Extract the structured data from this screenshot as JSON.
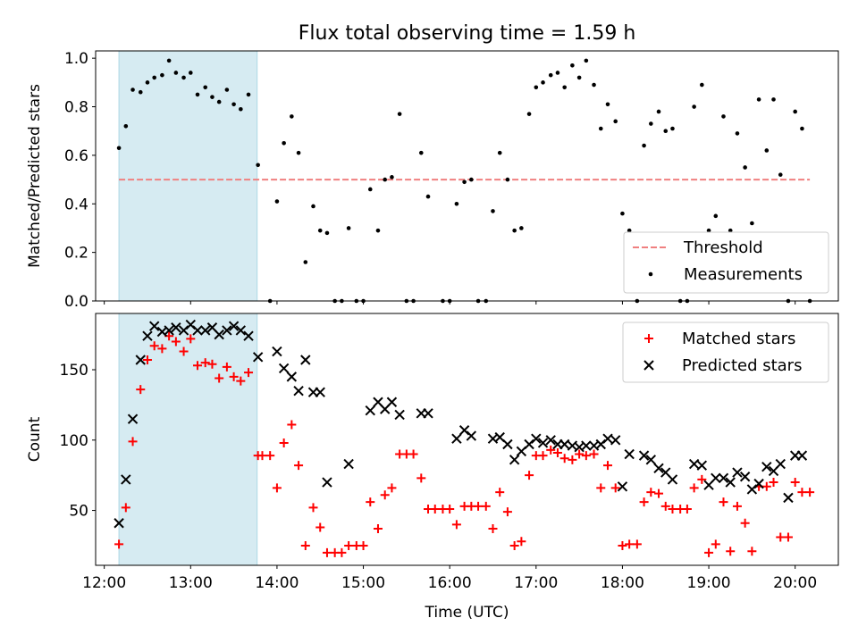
{
  "chart_data": [
    {
      "type": "scatter",
      "title": "Flux total observing time = 1.59 h",
      "ylabel": "Matched/Predicted stars",
      "xlabel": "",
      "xlim": [
        11.9,
        20.5
      ],
      "ylim": [
        0,
        1.03
      ],
      "yticks": [
        "0.0",
        "0.2",
        "0.4",
        "0.6",
        "0.8",
        "1.0"
      ],
      "shaded_interval": [
        12.17,
        13.77
      ],
      "shade_color": "#add8e6",
      "threshold": {
        "label": "Threshold",
        "value": 0.5,
        "x_range": [
          12.17,
          20.17
        ],
        "color": "#f08080"
      },
      "legend": {
        "placement": "lower-right",
        "entries": [
          "Threshold",
          "Measurements"
        ]
      },
      "series": [
        {
          "name": "Measurements",
          "color": "#000000",
          "x": [
            12.17,
            12.25,
            12.33,
            12.42,
            12.5,
            12.58,
            12.67,
            12.75,
            12.83,
            12.92,
            13.0,
            13.08,
            13.17,
            13.25,
            13.33,
            13.42,
            13.5,
            13.58,
            13.67,
            13.78,
            13.92,
            14.0,
            14.08,
            14.17,
            14.25,
            14.33,
            14.42,
            14.5,
            14.58,
            14.67,
            14.75,
            14.83,
            14.92,
            15.0,
            15.08,
            15.17,
            15.25,
            15.33,
            15.42,
            15.5,
            15.58,
            15.67,
            15.75,
            15.92,
            16.0,
            16.08,
            16.17,
            16.25,
            16.33,
            16.42,
            16.5,
            16.58,
            16.67,
            16.75,
            16.83,
            16.92,
            17.0,
            17.08,
            17.17,
            17.25,
            17.33,
            17.42,
            17.5,
            17.58,
            17.67,
            17.75,
            17.83,
            17.92,
            18.0,
            18.08,
            18.17,
            18.25,
            18.33,
            18.42,
            18.5,
            18.58,
            18.67,
            18.75,
            18.83,
            18.92,
            19.0,
            19.08,
            19.17,
            19.25,
            19.33,
            19.42,
            19.5,
            19.58,
            19.67,
            19.75,
            19.83,
            19.92,
            20.0,
            20.08,
            20.17
          ],
          "y": [
            0.63,
            0.72,
            0.87,
            0.86,
            0.9,
            0.92,
            0.93,
            0.99,
            0.94,
            0.92,
            0.94,
            0.85,
            0.88,
            0.84,
            0.82,
            0.87,
            0.81,
            0.79,
            0.85,
            0.56,
            0.0,
            0.41,
            0.65,
            0.76,
            0.61,
            0.16,
            0.39,
            0.29,
            0.28,
            0.0,
            0.0,
            0.3,
            0.0,
            0.0,
            0.46,
            0.29,
            0.5,
            0.51,
            0.77,
            0.0,
            0.0,
            0.61,
            0.43,
            0.0,
            0.0,
            0.4,
            0.49,
            0.5,
            0.0,
            0.0,
            0.37,
            0.61,
            0.5,
            0.29,
            0.3,
            0.77,
            0.88,
            0.9,
            0.93,
            0.94,
            0.88,
            0.97,
            0.92,
            0.99,
            0.89,
            0.71,
            0.81,
            0.74,
            0.36,
            0.29,
            0.0,
            0.64,
            0.73,
            0.78,
            0.7,
            0.71,
            0.0,
            0.0,
            0.8,
            0.89,
            0.29,
            0.35,
            0.76,
            0.29,
            0.69,
            0.55,
            0.32,
            0.83,
            0.62,
            0.83,
            0.52,
            0.0,
            0.78,
            0.71,
            0.0
          ]
        }
      ]
    },
    {
      "type": "scatter",
      "title": "",
      "xlabel": "Time (UTC)",
      "ylabel": "Count",
      "xlim": [
        11.9,
        20.5
      ],
      "ylim": [
        11,
        190
      ],
      "xticks": [
        {
          "value": 12,
          "label": "12:00"
        },
        {
          "value": 13,
          "label": "13:00"
        },
        {
          "value": 14,
          "label": "14:00"
        },
        {
          "value": 15,
          "label": "15:00"
        },
        {
          "value": 16,
          "label": "16:00"
        },
        {
          "value": 17,
          "label": "17:00"
        },
        {
          "value": 18,
          "label": "18:00"
        },
        {
          "value": 19,
          "label": "19:00"
        },
        {
          "value": 20,
          "label": "20:00"
        }
      ],
      "yticks": [
        "50",
        "100",
        "150"
      ],
      "shaded_interval": [
        12.17,
        13.77
      ],
      "shade_color": "#add8e6",
      "legend": {
        "placement": "upper-right",
        "entries": [
          "Matched stars",
          "Predicted stars"
        ]
      },
      "series": [
        {
          "name": "Matched stars",
          "marker": "plus",
          "color": "#ff0000",
          "x": [
            12.17,
            12.25,
            12.33,
            12.42,
            12.5,
            12.58,
            12.67,
            12.75,
            12.83,
            12.92,
            13.0,
            13.08,
            13.17,
            13.25,
            13.33,
            13.42,
            13.5,
            13.58,
            13.67,
            13.78,
            13.83,
            13.92,
            14.0,
            14.08,
            14.17,
            14.25,
            14.33,
            14.42,
            14.5,
            14.58,
            14.67,
            14.75,
            14.83,
            14.92,
            15.0,
            15.08,
            15.17,
            15.25,
            15.33,
            15.42,
            15.5,
            15.58,
            15.67,
            15.75,
            15.83,
            15.92,
            16.0,
            16.08,
            16.17,
            16.25,
            16.33,
            16.42,
            16.5,
            16.58,
            16.67,
            16.75,
            16.83,
            16.92,
            17.0,
            17.08,
            17.17,
            17.25,
            17.33,
            17.42,
            17.5,
            17.58,
            17.67,
            17.75,
            17.83,
            17.92,
            18.0,
            18.08,
            18.17,
            18.25,
            18.33,
            18.42,
            18.5,
            18.58,
            18.67,
            18.75,
            18.83,
            18.92,
            19.0,
            19.08,
            19.17,
            19.25,
            19.33,
            19.42,
            19.5,
            19.58,
            19.67,
            19.75,
            19.83,
            19.92,
            20.0,
            20.08,
            20.17
          ],
          "y": [
            26,
            52,
            99,
            136,
            157,
            167,
            165,
            174,
            170,
            163,
            172,
            153,
            155,
            154,
            144,
            152,
            145,
            142,
            148,
            89,
            89,
            89,
            66,
            98,
            111,
            82,
            25,
            52,
            38,
            20,
            20,
            20,
            25,
            25,
            25,
            56,
            37,
            61,
            66,
            90,
            90,
            90,
            73,
            51,
            51,
            51,
            51,
            40,
            53,
            53,
            53,
            53,
            37,
            63,
            49,
            25,
            28,
            75,
            89,
            89,
            93,
            91,
            87,
            86,
            90,
            89,
            90,
            66,
            82,
            66,
            25,
            26,
            26,
            56,
            63,
            62,
            53,
            51,
            51,
            51,
            66,
            72,
            20,
            26,
            56,
            21,
            53,
            41,
            21,
            67,
            67,
            70,
            31,
            31,
            70,
            63,
            63
          ]
        },
        {
          "name": "Predicted stars",
          "marker": "x",
          "color": "#000000",
          "x": [
            12.17,
            12.25,
            12.33,
            12.42,
            12.5,
            12.58,
            12.67,
            12.75,
            12.83,
            12.92,
            13.0,
            13.08,
            13.17,
            13.25,
            13.33,
            13.42,
            13.5,
            13.58,
            13.67,
            13.78,
            14.0,
            14.08,
            14.17,
            14.25,
            14.33,
            14.42,
            14.5,
            14.58,
            14.83,
            15.08,
            15.17,
            15.25,
            15.33,
            15.42,
            15.67,
            15.75,
            16.08,
            16.17,
            16.25,
            16.5,
            16.58,
            16.67,
            16.75,
            16.83,
            16.92,
            17.0,
            17.08,
            17.17,
            17.25,
            17.33,
            17.42,
            17.5,
            17.58,
            17.67,
            17.75,
            17.83,
            17.92,
            18.0,
            18.08,
            18.25,
            18.33,
            18.42,
            18.5,
            18.58,
            18.83,
            18.92,
            19.0,
            19.08,
            19.17,
            19.25,
            19.33,
            19.42,
            19.5,
            19.58,
            19.67,
            19.75,
            19.83,
            19.92,
            20.0,
            20.08
          ],
          "y": [
            41,
            72,
            115,
            157,
            174,
            181,
            177,
            178,
            180,
            178,
            182,
            178,
            178,
            180,
            175,
            178,
            181,
            178,
            174,
            159,
            163,
            151,
            145,
            135,
            157,
            134,
            134,
            70,
            83,
            121,
            127,
            122,
            127,
            118,
            119,
            119,
            101,
            107,
            103,
            101,
            102,
            97,
            86,
            92,
            97,
            101,
            98,
            100,
            97,
            97,
            96,
            95,
            96,
            96,
            97,
            101,
            100,
            67,
            90,
            89,
            86,
            80,
            77,
            72,
            83,
            82,
            68,
            73,
            73,
            70,
            77,
            74,
            65,
            69,
            81,
            78,
            83,
            59,
            89,
            89
          ]
        }
      ]
    }
  ]
}
